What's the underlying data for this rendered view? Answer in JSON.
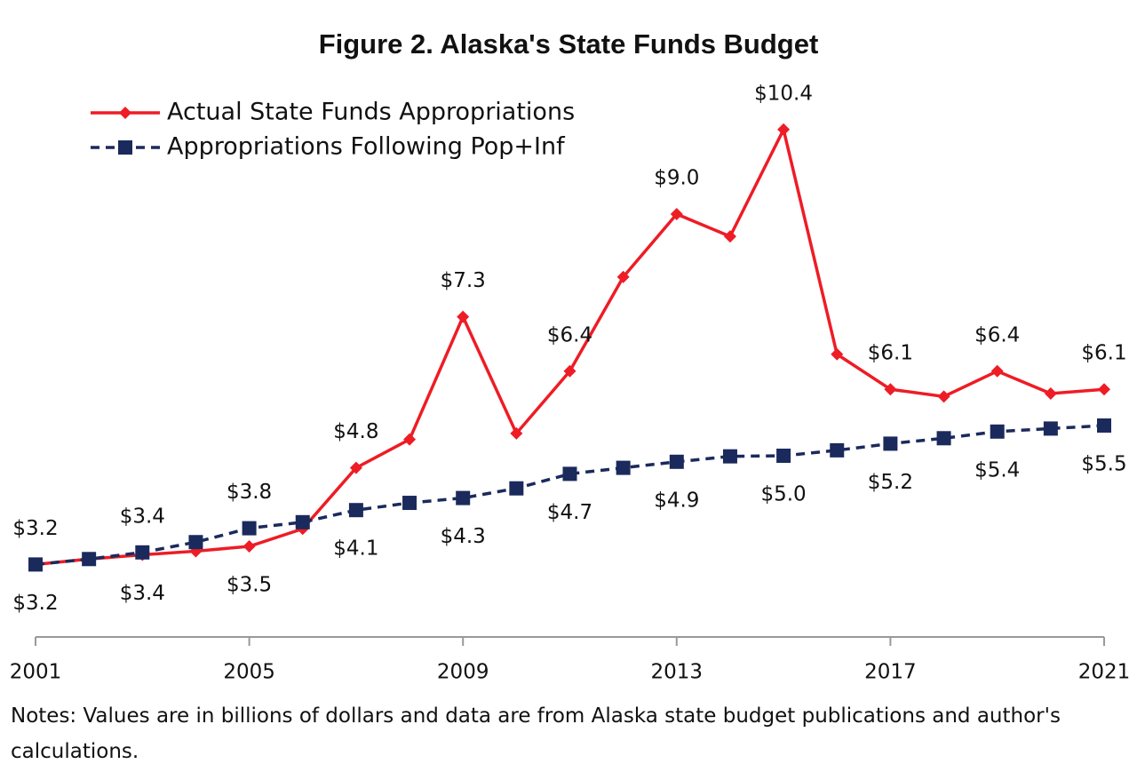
{
  "chart_data": {
    "type": "line",
    "title": "Figure 2. Alaska's State Funds Budget",
    "notes": "Notes: Values are in billions of dollars and data are from Alaska state budget publications and author's calculations.",
    "x": [
      2001,
      2002,
      2003,
      2004,
      2005,
      2006,
      2007,
      2008,
      2009,
      2010,
      2011,
      2012,
      2013,
      2014,
      2015,
      2016,
      2017,
      2018,
      2019,
      2020,
      2021
    ],
    "xlim": [
      2001,
      2021
    ],
    "xticks": [
      2001,
      2005,
      2009,
      2013,
      2017,
      2021
    ],
    "ylim": [
      2,
      11
    ],
    "legend": "upper left",
    "series": [
      {
        "name": "Actual State Funds Appropriations",
        "color": "#ee1c25",
        "marker": "diamond",
        "dashed": false,
        "values": [
          3.2,
          3.29,
          3.36,
          3.42,
          3.5,
          3.79,
          4.8,
          5.27,
          7.3,
          5.37,
          6.4,
          7.96,
          9.0,
          8.63,
          10.4,
          6.68,
          6.1,
          5.98,
          6.4,
          6.03,
          6.1
        ],
        "value_labels": [
          "$3.2",
          null,
          "$3.4",
          null,
          "$3.5",
          null,
          "$4.8",
          null,
          "$7.3",
          null,
          "$6.4",
          null,
          "$9.0",
          null,
          "$10.4",
          null,
          "$6.1",
          null,
          "$6.4",
          null,
          "$6.1"
        ]
      },
      {
        "name": "Appropriations Following Pop+Inf",
        "color": "#1b2a5c",
        "marker": "square",
        "dashed": true,
        "values": [
          3.2,
          3.29,
          3.4,
          3.57,
          3.8,
          3.9,
          4.1,
          4.22,
          4.3,
          4.46,
          4.7,
          4.8,
          4.9,
          4.99,
          5.0,
          5.09,
          5.2,
          5.29,
          5.4,
          5.45,
          5.5
        ],
        "value_labels": [
          "$3.2",
          null,
          "$3.4",
          null,
          "$3.8",
          null,
          "$4.1",
          null,
          "$4.3",
          null,
          "$4.7",
          null,
          "$4.9",
          null,
          "$5.0",
          null,
          "$5.2",
          null,
          "$5.4",
          null,
          "$5.5"
        ]
      }
    ]
  }
}
